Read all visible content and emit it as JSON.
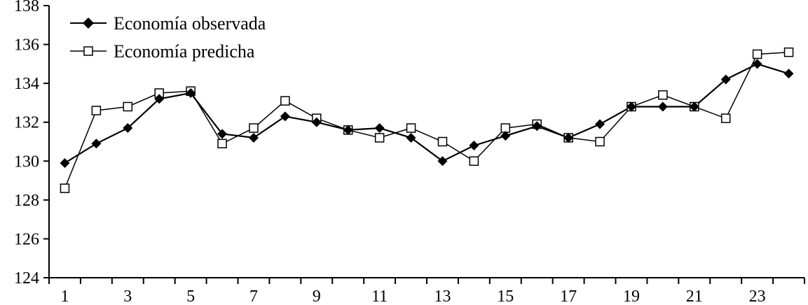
{
  "chart_data": {
    "type": "line",
    "x": [
      1,
      2,
      3,
      4,
      5,
      6,
      7,
      8,
      9,
      10,
      11,
      12,
      13,
      14,
      15,
      16,
      17,
      18,
      19,
      20,
      21,
      22,
      23,
      24
    ],
    "x_tick_labels": [
      "1",
      "3",
      "5",
      "7",
      "9",
      "11",
      "13",
      "15",
      "17",
      "19",
      "21",
      "23"
    ],
    "y_tick_labels": [
      "124",
      "126",
      "128",
      "130",
      "132",
      "134",
      "136",
      "138"
    ],
    "ylim": [
      124,
      138
    ],
    "xlim": [
      0.5,
      24.5
    ],
    "grid": false,
    "legend_position": "top-left",
    "series": [
      {
        "name": "Economía observada",
        "marker": "filled-diamond",
        "color": "#000000",
        "values": [
          129.9,
          130.9,
          131.7,
          133.2,
          133.5,
          131.4,
          131.2,
          132.3,
          132.0,
          131.6,
          131.7,
          131.2,
          130.0,
          130.8,
          131.3,
          131.8,
          131.2,
          131.9,
          132.8,
          132.8,
          132.8,
          134.2,
          135.0,
          134.5
        ]
      },
      {
        "name": "Economía predicha",
        "marker": "open-square",
        "color": "#000000",
        "values": [
          128.6,
          132.6,
          132.8,
          133.5,
          133.6,
          130.9,
          131.7,
          133.1,
          132.2,
          131.6,
          131.2,
          131.7,
          131.0,
          130.0,
          131.7,
          131.9,
          131.2,
          131.0,
          132.8,
          133.4,
          132.8,
          132.2,
          135.5,
          135.6
        ]
      }
    ]
  }
}
